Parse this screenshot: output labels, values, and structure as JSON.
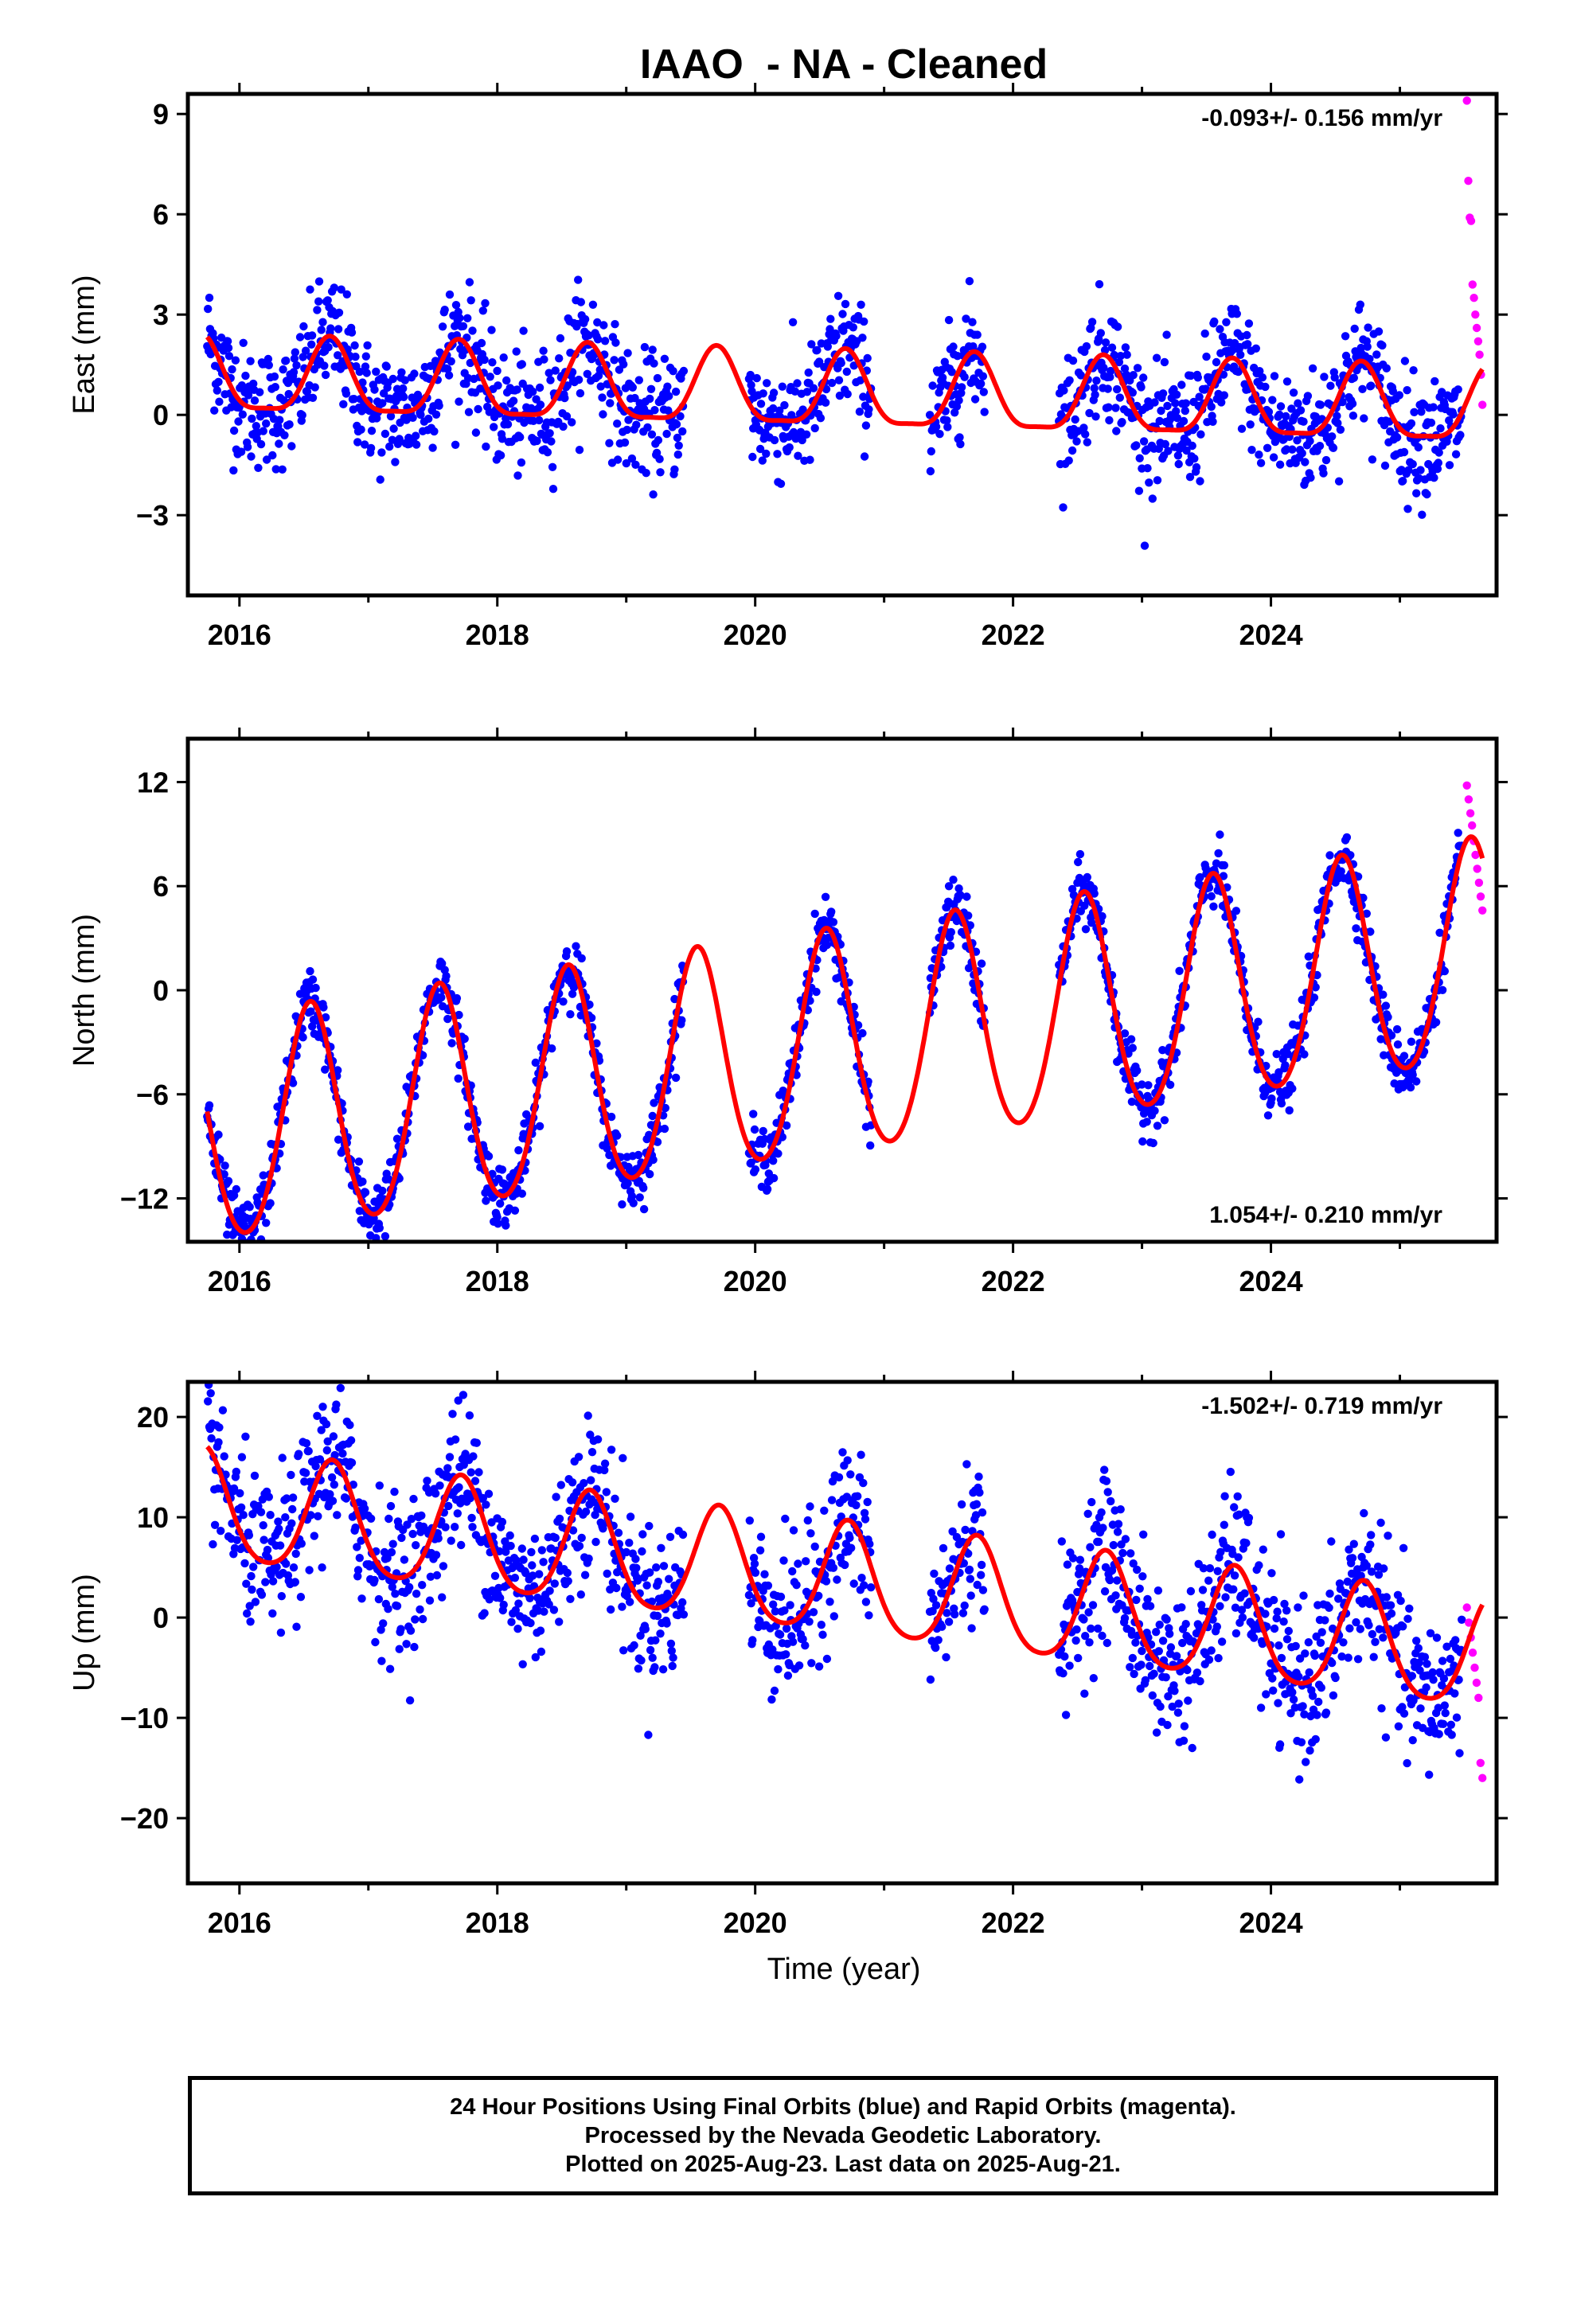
{
  "chart_data": {
    "title": "IAAO  - NA - Cleaned",
    "type": "scatter",
    "xlabel": "Time (year)",
    "xlim": [
      2015.6,
      2025.75
    ],
    "x_ticks": [
      "2016",
      "2018",
      "2020",
      "2022",
      "2024"
    ],
    "series_legend": {
      "final_orbits_color": "#0000ff",
      "rapid_orbits_color": "#ff00ff",
      "model_color": "#ff0000"
    },
    "panels": [
      {
        "id": "east",
        "ylabel": "East (mm)",
        "ylim": [
          -5.4,
          9.6
        ],
        "y_ticks": [
          -3,
          0,
          3,
          6,
          9
        ],
        "y_tick_labels": [
          "−3",
          "0",
          "3",
          "6",
          "9"
        ],
        "rate_label": "-0.093+/- 0.156 mm/yr",
        "rate_position": "top-right",
        "model": {
          "offset": 0.65,
          "trend": -0.093,
          "annual_amp": 1.1,
          "annual_phase_peak": 0.7,
          "semiannual_amp": 0.3
        },
        "scatter_std": 0.9,
        "rapid_y": [
          9.4,
          7.0,
          5.9,
          5.8,
          3.9,
          3.5,
          3.0,
          2.6,
          2.2,
          1.8,
          1.2,
          0.3
        ]
      },
      {
        "id": "north",
        "ylabel": "North (mm)",
        "ylim": [
          -14.5,
          14.5
        ],
        "y_ticks": [
          -12,
          -6,
          0,
          6,
          12
        ],
        "y_tick_labels": [
          "−12",
          "−6",
          "0",
          "6",
          "12"
        ],
        "rate_label": "1.054+/- 0.210 mm/yr",
        "rate_position": "bottom-right",
        "model": {
          "offset": -4.0,
          "trend": 1.054,
          "annual_amp": 6.4,
          "annual_phase_peak": 0.55,
          "semiannual_amp": 0.6
        },
        "scatter_std": 0.9,
        "rapid_y": [
          11.8,
          11.0,
          10.2,
          9.5,
          8.6,
          7.8,
          7.0,
          6.2,
          5.4,
          4.6
        ]
      },
      {
        "id": "up",
        "ylabel": "Up (mm)",
        "ylim": [
          -26.5,
          23.5
        ],
        "y_ticks": [
          -20,
          -10,
          0,
          10,
          20
        ],
        "y_tick_labels": [
          "−20",
          "−10",
          "0",
          "10",
          "20"
        ],
        "rate_label": "-1.502+/- 0.719 mm/yr",
        "rate_position": "top-right",
        "model": {
          "offset": 4.5,
          "trend": -1.502,
          "annual_amp": 5.5,
          "annual_phase_peak": 0.72,
          "semiannual_amp": 0.8
        },
        "scatter_std": 3.8,
        "rapid_y": [
          1.0,
          -0.5,
          -2.0,
          -3.5,
          -5.0,
          -6.5,
          -8.0,
          -14.5,
          -16.0
        ]
      }
    ],
    "data_gaps": [
      [
        2019.45,
        2019.95
      ],
      [
        2020.9,
        2021.35
      ],
      [
        2021.78,
        2022.35
      ]
    ],
    "final_orbits_range": [
      2015.75,
      2025.48
    ],
    "rapid_orbits_range": [
      2025.52,
      2025.64
    ]
  },
  "footer": {
    "line1": "24 Hour Positions Using Final Orbits (blue) and Rapid Orbits (magenta).",
    "line2": "Processed by the Nevada Geodetic Laboratory.",
    "line3": "Plotted on 2025-Aug-23. Last data on 2025-Aug-21."
  }
}
